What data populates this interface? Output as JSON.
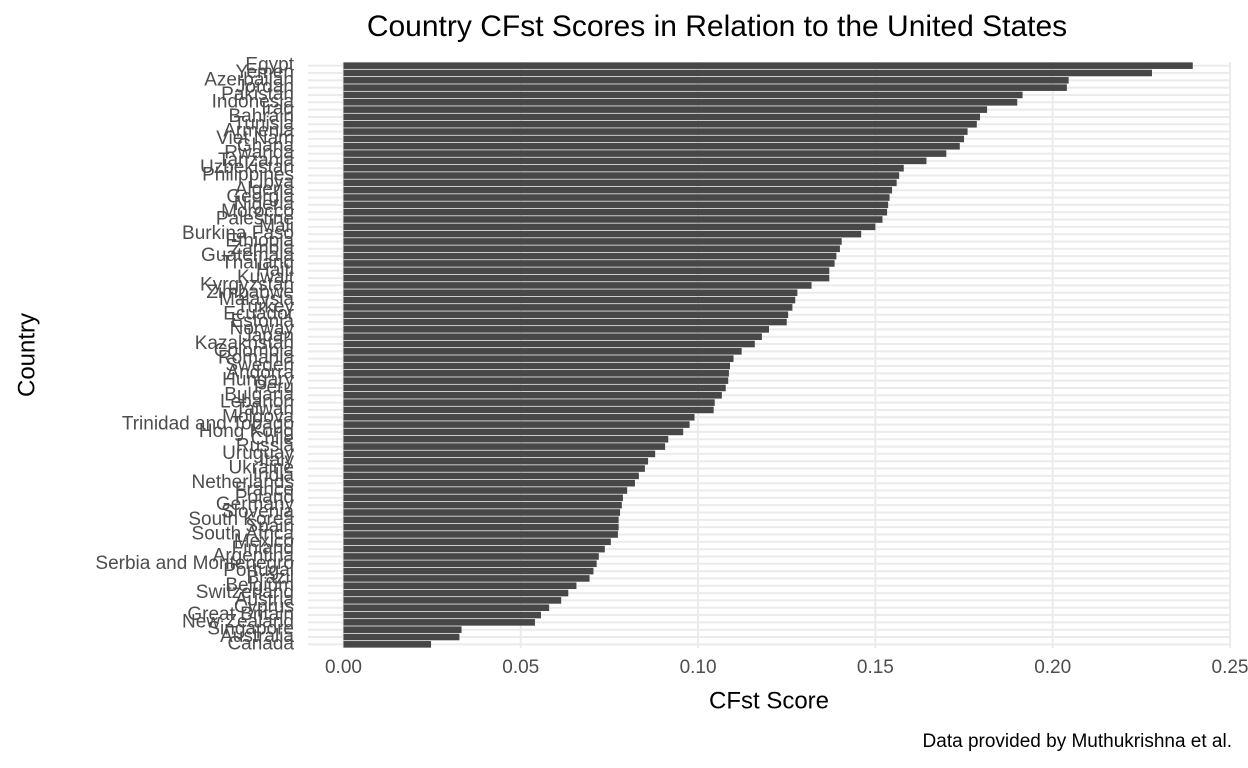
{
  "chart_data": {
    "type": "barh",
    "title": "Country CFst Scores in Relation to the United States",
    "x_label": "CFst Score",
    "y_label": "Country",
    "caption": "Data provided by Muthukrishna et al.",
    "color": "#474747",
    "grid": true,
    "xlim": [
      -0.01,
      0.25
    ],
    "xticks": [
      {
        "value": 0,
        "label": "0.00"
      },
      0.05,
      {
        "value": 0.1,
        "label": "0.10"
      },
      0.15,
      {
        "value": 0.2,
        "label": "0.20"
      },
      0.25
    ],
    "categories": [
      "Egypt",
      "Yemen",
      "Azerbaijan",
      "Jordan",
      "Pakistan",
      "Indonesia",
      "Iraq",
      "Bahrain",
      "Tunisia",
      "Armenia",
      "Viet Nam",
      "Ghana",
      "Rwanda",
      "Tanzania",
      "Uzbekistan",
      "Philippines",
      "Libya",
      "Algeria",
      "Georgia",
      "Nigeria",
      "Morocco",
      "Palestine",
      "Mali",
      "Burkina Faso",
      "Ethiopia",
      "Zambia",
      "Guatemala",
      "Thailand",
      "Haiti",
      "Kuwait",
      "Kyrgyzstan",
      "Zimbabwe",
      "Malaysia",
      "Turkey",
      "Ecuador",
      "Estonia",
      "Norway",
      "Japan",
      "Kazakhstan",
      "Colombia",
      "Romania",
      "Sweden",
      "Andorra",
      "Hungary",
      "Peru",
      "Bulgaria",
      "Lebanon",
      "Taiwan",
      "Moldova",
      "Trinidad and Tobago",
      "Hong Kong",
      "Chile",
      "Russia",
      "Uruguay",
      "Italy",
      "Ukraine",
      "India",
      "Netherlands",
      "France",
      "Poland",
      "Germany",
      "Slovenia",
      "South Korea",
      "Spain",
      "South Africa",
      "Mexico",
      "Finland",
      "Argentina",
      "Serbia and Montenegro",
      "Portugal",
      "Brazil",
      "Belgium",
      "Switzerland",
      "Austria",
      "Cyprus",
      "Great Britain",
      "New Zealand",
      "Singapore",
      "Australia",
      "Canada"
    ],
    "values": [
      0.2395,
      0.228,
      0.2045,
      0.204,
      0.1915,
      0.19,
      0.1815,
      0.1795,
      0.1786,
      0.176,
      0.175,
      0.1738,
      0.17,
      0.1644,
      0.158,
      0.1567,
      0.156,
      0.1547,
      0.154,
      0.1536,
      0.1533,
      0.152,
      0.15,
      0.146,
      0.1405,
      0.14,
      0.139,
      0.1385,
      0.137,
      0.137,
      0.132,
      0.128,
      0.1274,
      0.1266,
      0.1254,
      0.125,
      0.12,
      0.118,
      0.116,
      0.1123,
      0.11,
      0.109,
      0.1087,
      0.1085,
      0.1078,
      0.1067,
      0.1047,
      0.1044,
      0.099,
      0.0976,
      0.0958,
      0.0916,
      0.0907,
      0.0879,
      0.0859,
      0.085,
      0.0833,
      0.0822,
      0.08,
      0.0788,
      0.0785,
      0.078,
      0.0776,
      0.0776,
      0.0774,
      0.0754,
      0.0737,
      0.072,
      0.0714,
      0.0705,
      0.0694,
      0.0657,
      0.0634,
      0.0614,
      0.058,
      0.0557,
      0.054,
      0.0333,
      0.0327,
      0.0247
    ]
  }
}
